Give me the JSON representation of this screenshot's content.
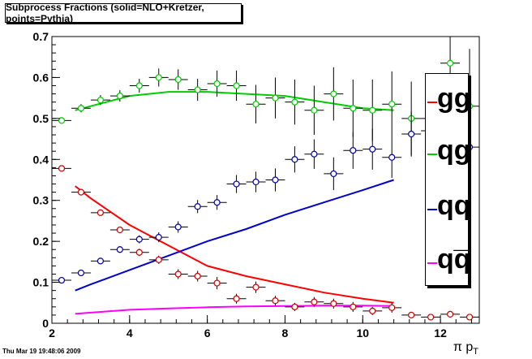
{
  "timestamp": "Thu Mar 19 19:48:06 2009",
  "legend": [
    {
      "label": "gg",
      "color": "#ff0000"
    },
    {
      "label": "qg",
      "color": "#00cc00"
    },
    {
      "label": "qq",
      "color": "#0000cc"
    },
    {
      "label": "qq̅",
      "color": "#ff00ff"
    }
  ],
  "chart_data": {
    "type": "scatter",
    "title": "Subprocess Fractions (solid=NLO+Kretzer, points=Pythia)",
    "xlabel": "π p_T",
    "ylabel": "",
    "xlim": [
      2,
      13
    ],
    "ylim": [
      0,
      0.7
    ],
    "xticks": [
      "2",
      "4",
      "6",
      "8",
      "10",
      "12"
    ],
    "yticks": [
      "0",
      "0.1",
      "0.2",
      "0.3",
      "0.4",
      "0.5",
      "0.6",
      "0.7"
    ],
    "curves": [
      {
        "name": "gg",
        "color": "#ff0000",
        "x": [
          2.6,
          3.0,
          4.0,
          5.0,
          6.0,
          7.0,
          8.0,
          9.0,
          10.0,
          10.8
        ],
        "y": [
          0.335,
          0.305,
          0.24,
          0.19,
          0.14,
          0.115,
          0.095,
          0.075,
          0.06,
          0.05
        ]
      },
      {
        "name": "qg",
        "color": "#00cc00",
        "x": [
          2.6,
          3.0,
          4.0,
          5.0,
          6.0,
          7.0,
          8.0,
          9.0,
          10.0,
          10.8
        ],
        "y": [
          0.52,
          0.53,
          0.555,
          0.565,
          0.565,
          0.56,
          0.555,
          0.54,
          0.525,
          0.52
        ]
      },
      {
        "name": "qq",
        "color": "#0000cc",
        "x": [
          2.6,
          3.0,
          4.0,
          5.0,
          6.0,
          7.0,
          8.0,
          9.0,
          10.0,
          10.8
        ],
        "y": [
          0.08,
          0.095,
          0.13,
          0.165,
          0.2,
          0.23,
          0.265,
          0.295,
          0.325,
          0.35
        ]
      },
      {
        "name": "qqbar",
        "color": "#ff00ff",
        "x": [
          2.6,
          3.0,
          4.0,
          5.0,
          6.0,
          7.0,
          8.0,
          9.0,
          10.0,
          10.8
        ],
        "y": [
          0.023,
          0.026,
          0.033,
          0.036,
          0.039,
          0.041,
          0.042,
          0.043,
          0.043,
          0.042
        ]
      }
    ],
    "points": [
      {
        "name": "gg",
        "color": "#cc0000",
        "x": [
          2.25,
          2.75,
          3.25,
          3.75,
          4.25,
          4.75,
          5.25,
          5.75,
          6.25,
          6.75,
          7.25,
          7.75,
          8.25,
          8.75,
          9.25,
          9.75,
          10.25,
          10.75,
          11.25,
          11.75,
          12.25,
          12.75
        ],
        "y": [
          0.378,
          0.32,
          0.27,
          0.228,
          0.173,
          0.155,
          0.12,
          0.115,
          0.098,
          0.06,
          0.088,
          0.055,
          0.04,
          0.052,
          0.048,
          0.04,
          0.03,
          0.038,
          0.02,
          0.015,
          0.022,
          0.015
        ],
        "err": [
          0.005,
          0.006,
          0.007,
          0.008,
          0.009,
          0.01,
          0.012,
          0.013,
          0.015,
          0.012,
          0.014,
          0.012,
          0.01,
          0.012,
          0.012,
          0.012,
          0.01,
          0.012,
          0.008,
          0.006,
          0.008,
          0.006
        ]
      },
      {
        "name": "qg",
        "color": "#00cc00",
        "x": [
          2.25,
          2.75,
          3.25,
          3.75,
          4.25,
          4.75,
          5.25,
          5.75,
          6.25,
          6.75,
          7.25,
          7.75,
          8.25,
          8.75,
          9.25,
          9.75,
          10.25,
          10.75,
          11.25,
          11.75,
          12.25,
          12.75
        ],
        "y": [
          0.495,
          0.525,
          0.545,
          0.555,
          0.58,
          0.6,
          0.595,
          0.57,
          0.585,
          0.58,
          0.535,
          0.55,
          0.54,
          0.52,
          0.56,
          0.525,
          0.52,
          0.535,
          0.5,
          0.47,
          0.635,
          0.53
        ],
        "err": [
          0.008,
          0.01,
          0.012,
          0.014,
          0.017,
          0.022,
          0.025,
          0.027,
          0.032,
          0.037,
          0.047,
          0.05,
          0.055,
          0.06,
          0.065,
          0.07,
          0.075,
          0.08,
          0.09,
          0.1,
          0.12,
          0.14
        ]
      },
      {
        "name": "qq",
        "color": "#000099",
        "x": [
          2.25,
          2.75,
          3.25,
          3.75,
          4.25,
          4.75,
          5.25,
          5.75,
          6.25,
          6.75,
          7.25,
          7.75,
          8.25,
          8.75,
          9.25,
          9.75,
          10.25,
          10.75,
          11.25,
          11.75,
          12.25,
          12.75
        ],
        "y": [
          0.105,
          0.123,
          0.152,
          0.18,
          0.205,
          0.21,
          0.235,
          0.285,
          0.295,
          0.34,
          0.345,
          0.35,
          0.4,
          0.413,
          0.365,
          0.422,
          0.425,
          0.405,
          0.462,
          0.5,
          0.48,
          0.43
        ],
        "err": [
          0.004,
          0.005,
          0.007,
          0.008,
          0.01,
          0.012,
          0.014,
          0.016,
          0.018,
          0.022,
          0.025,
          0.028,
          0.032,
          0.036,
          0.04,
          0.045,
          0.05,
          0.05,
          0.055,
          0.06,
          0.07,
          0.08
        ]
      }
    ]
  }
}
